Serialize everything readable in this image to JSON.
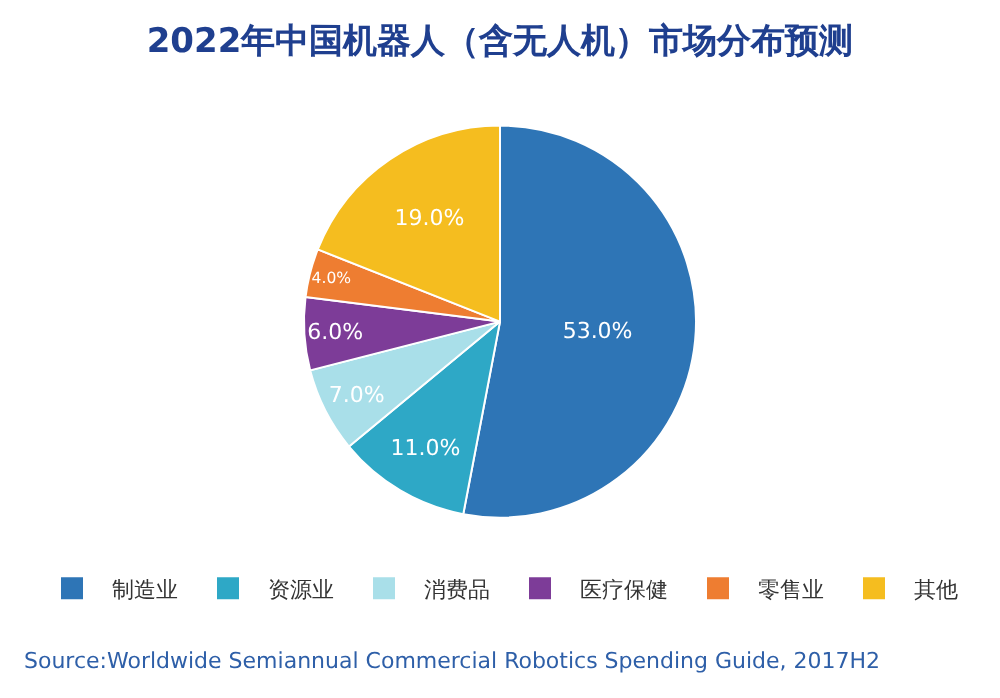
{
  "chart_data": {
    "type": "pie",
    "title": "2022年中国机器人（含无人机）市场分布预测",
    "categories": [
      "制造业",
      "资源业",
      "消费品",
      "医疗保健",
      "零售业",
      "其他"
    ],
    "values": [
      53,
      11,
      7,
      6,
      4,
      19
    ],
    "value_labels": [
      "53.0%",
      "11.0%",
      "7.0%",
      "6.0%",
      "4.0%",
      "19.0%"
    ],
    "colors": [
      "#2e75b6",
      "#2ea8c6",
      "#a9dfe9",
      "#7d3c98",
      "#ee7d31",
      "#f5bd1f"
    ],
    "legend": "bottom",
    "annotations": [
      "Source:Worldwide Semiannual Commercial Robotics Spending Guide, 2017H2"
    ]
  }
}
